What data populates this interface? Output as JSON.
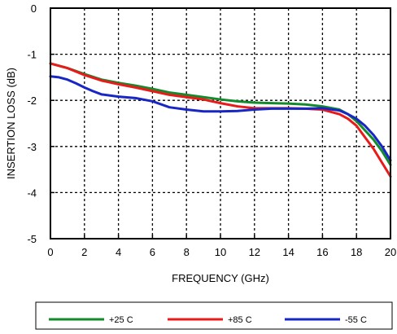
{
  "chart_data": {
    "type": "line",
    "title": "",
    "xlabel": "FREQUENCY (GHz)",
    "ylabel": "INSERTION LOSS (dB)",
    "xlim": [
      0,
      20
    ],
    "ylim": [
      -5,
      0
    ],
    "xticks": [
      0,
      2,
      4,
      6,
      8,
      10,
      12,
      14,
      16,
      18,
      20
    ],
    "yticks": [
      0,
      -1,
      -2,
      -3,
      -4,
      -5
    ],
    "grid": true,
    "legend_position": "bottom",
    "series": [
      {
        "name": "+25 C",
        "color": "#138a2b",
        "x": [
          0,
          1,
          2,
          3,
          4,
          5,
          6,
          7,
          8,
          9,
          10,
          11,
          12,
          13,
          14,
          15,
          16,
          17,
          17.5,
          18,
          18.5,
          19,
          19.5,
          20
        ],
        "y": [
          -1.2,
          -1.3,
          -1.43,
          -1.55,
          -1.62,
          -1.68,
          -1.75,
          -1.83,
          -1.88,
          -1.93,
          -1.98,
          -2.02,
          -2.05,
          -2.06,
          -2.07,
          -2.09,
          -2.13,
          -2.2,
          -2.3,
          -2.45,
          -2.65,
          -2.85,
          -3.1,
          -3.4
        ]
      },
      {
        "name": "+85 C",
        "color": "#e81a1a",
        "x": [
          0,
          1,
          2,
          3,
          4,
          5,
          6,
          7,
          8,
          9,
          10,
          11,
          12,
          13,
          14,
          15,
          16,
          17,
          17.5,
          18,
          18.5,
          19,
          19.5,
          20
        ],
        "y": [
          -1.2,
          -1.3,
          -1.45,
          -1.57,
          -1.65,
          -1.72,
          -1.8,
          -1.88,
          -1.93,
          -1.98,
          -2.06,
          -2.13,
          -2.17,
          -2.17,
          -2.17,
          -2.18,
          -2.2,
          -2.3,
          -2.4,
          -2.55,
          -2.8,
          -3.05,
          -3.35,
          -3.65
        ]
      },
      {
        "name": "-55 C",
        "color": "#1826c4",
        "x": [
          0,
          0.5,
          1,
          1.5,
          2,
          2.5,
          3,
          4,
          5,
          6,
          7,
          8,
          9,
          10,
          11,
          12,
          13,
          14,
          15,
          16,
          17,
          17.5,
          18,
          18.5,
          19,
          19.5,
          20
        ],
        "y": [
          -1.48,
          -1.5,
          -1.55,
          -1.63,
          -1.72,
          -1.8,
          -1.87,
          -1.92,
          -1.95,
          -2.02,
          -2.15,
          -2.2,
          -2.24,
          -2.24,
          -2.23,
          -2.2,
          -2.18,
          -2.18,
          -2.18,
          -2.17,
          -2.22,
          -2.3,
          -2.4,
          -2.55,
          -2.75,
          -3.0,
          -3.3
        ]
      }
    ]
  }
}
